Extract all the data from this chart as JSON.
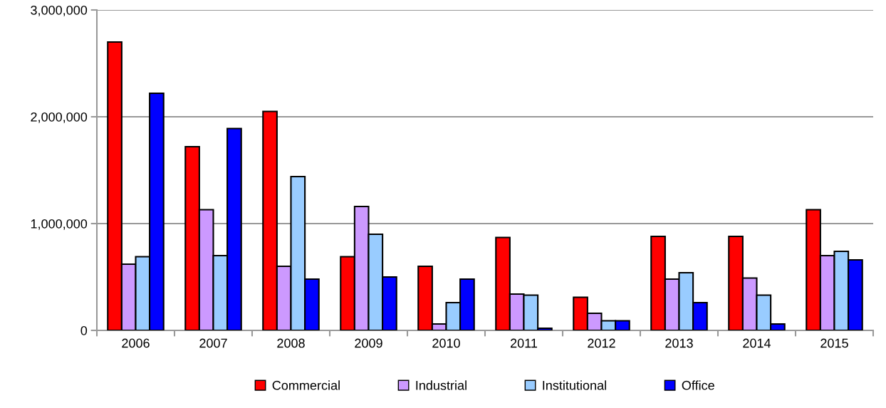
{
  "chart_data": {
    "type": "bar",
    "categories": [
      "2006",
      "2007",
      "2008",
      "2009",
      "2010",
      "2011",
      "2012",
      "2013",
      "2014",
      "2015"
    ],
    "series": [
      {
        "name": "Commercial",
        "color": "#ff0000",
        "values": [
          2700000,
          1720000,
          2050000,
          690000,
          600000,
          870000,
          310000,
          880000,
          880000,
          1130000
        ]
      },
      {
        "name": "Industrial",
        "color": "#cc99ff",
        "values": [
          620000,
          1130000,
          600000,
          1160000,
          60000,
          340000,
          160000,
          480000,
          490000,
          700000
        ]
      },
      {
        "name": "Institutional",
        "color": "#99ccff",
        "values": [
          690000,
          700000,
          1440000,
          900000,
          260000,
          330000,
          90000,
          540000,
          330000,
          740000
        ]
      },
      {
        "name": "Office",
        "color": "#0000ff",
        "values": [
          2220000,
          1890000,
          480000,
          500000,
          480000,
          20000,
          90000,
          260000,
          60000,
          660000
        ]
      }
    ],
    "ylim": [
      0,
      3000000
    ],
    "yticks": [
      {
        "value": 0,
        "label": "0"
      },
      {
        "value": 1000000,
        "label": "1,000,000"
      },
      {
        "value": 2000000,
        "label": "2,000,000"
      },
      {
        "value": 3000000,
        "label": "3,000,000"
      }
    ],
    "grid": "y",
    "legend": "bottom"
  }
}
